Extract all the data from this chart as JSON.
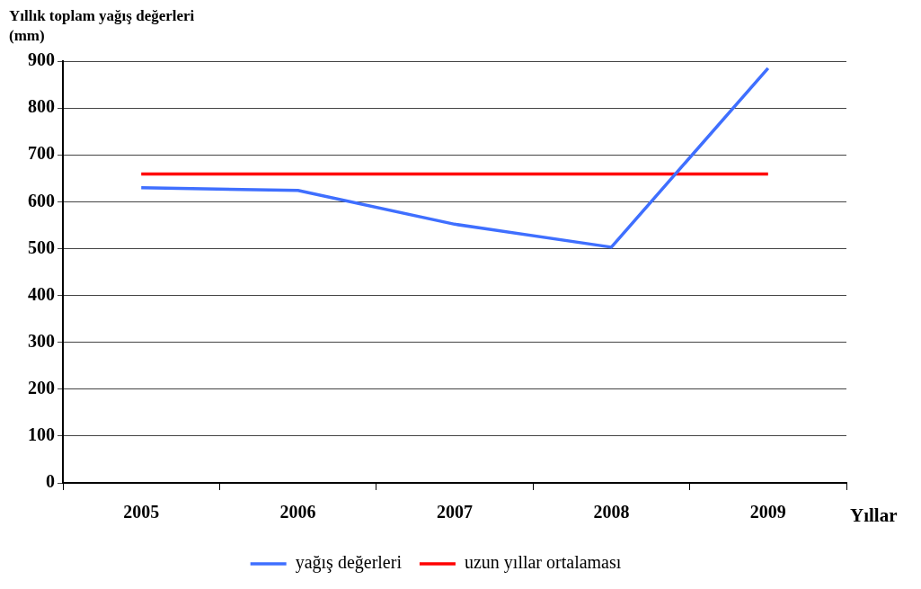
{
  "chart_data": {
    "type": "line",
    "ylabel": "Yıllık toplam yağış değerleri (mm)",
    "xlabel": "Yıllar",
    "categories": [
      "2005",
      "2006",
      "2007",
      "2008",
      "2009"
    ],
    "series": [
      {
        "name": "yağış değerleri",
        "color": "#3f6fff",
        "values": [
          630,
          624,
          552,
          503,
          885
        ]
      },
      {
        "name": "uzun yıllar ortalaması",
        "color": "#ff0000",
        "values": [
          659,
          659,
          659,
          659,
          659
        ]
      }
    ],
    "ylim": [
      0,
      900
    ],
    "yticks": [
      0,
      100,
      200,
      300,
      400,
      500,
      600,
      700,
      800,
      900
    ],
    "grid": "y",
    "legend": "bottom",
    "marker": "none",
    "line_style": "solid"
  }
}
